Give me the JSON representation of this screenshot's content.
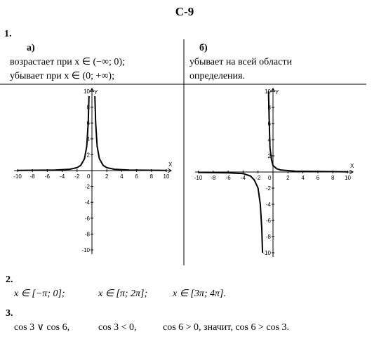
{
  "title": "С-9",
  "task1": {
    "number": "1.",
    "a": {
      "label": "а)",
      "lines": [
        "возрастает при  x ∈ (−∞; 0);",
        "убывает при  x ∈ (0; +∞);"
      ]
    },
    "b": {
      "label": "б)",
      "lines": [
        "убывает на всей области",
        "определения."
      ]
    },
    "graphs": [
      {
        "x_label": "X",
        "y_label": "Y",
        "origin": "0",
        "x_ticks": [
          "-10",
          "-8",
          "-6",
          "-4",
          "-2",
          "2",
          "4",
          "6",
          "8",
          "10"
        ],
        "y_ticks": [
          "10",
          "8",
          "6",
          "4",
          "2",
          "-2",
          "-4",
          "-6",
          "-8",
          "-10"
        ]
      },
      {
        "x_label": "X",
        "y_label": "Y",
        "origin": "0",
        "x_ticks": [
          "-10",
          "-8",
          "-6",
          "-4",
          "-2",
          "2",
          "4",
          "6",
          "8",
          "10"
        ],
        "y_ticks": [
          "10",
          "8",
          "6",
          "4",
          "2",
          "-2",
          "-4",
          "-6",
          "-8",
          "-10"
        ]
      }
    ]
  },
  "task2": {
    "number": "2.",
    "items": [
      "x ∈ [−π; 0];",
      "x ∈ [π; 2π];",
      "x ∈ [3π; 4π]."
    ]
  },
  "task3": {
    "number": "3.",
    "items": [
      "cos 3 ∨ cos 6,",
      "cos 3 < 0,",
      "cos 6 > 0, значит, cos 6 > cos 3."
    ]
  }
}
